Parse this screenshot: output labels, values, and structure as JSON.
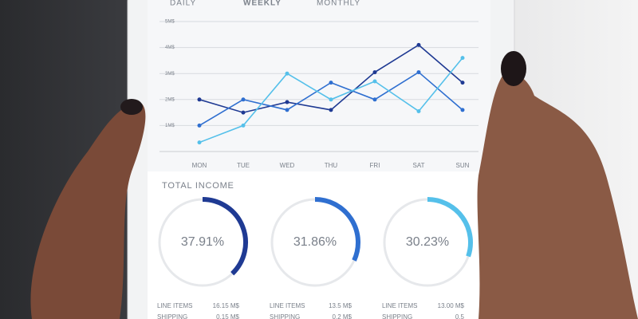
{
  "chart_data": [
    {
      "type": "line",
      "tabs": [
        "DAILY",
        "WEEKLY",
        "MONTHLY"
      ],
      "active_tab": 1,
      "categories": [
        "MON",
        "TUE",
        "WED",
        "THU",
        "FRI",
        "SAT",
        "SUN"
      ],
      "series": [
        {
          "color": "#1f3a93",
          "values": [
            2,
            1.5,
            1.9,
            1.6,
            3.05,
            4.1,
            2.65
          ]
        },
        {
          "color": "#2f6fd0",
          "values": [
            1,
            2,
            1.6,
            2.65,
            2,
            3.05,
            1.6
          ]
        },
        {
          "color": "#55c0ea",
          "values": [
            0.35,
            1,
            3,
            2,
            2.7,
            1.55,
            3.6
          ]
        }
      ],
      "ylim": [
        0,
        5
      ],
      "yticks": [
        {
          "value": 1,
          "label": "1M$"
        },
        {
          "value": 2,
          "label": "2M$"
        },
        {
          "value": 3,
          "label": "3M$"
        },
        {
          "value": 4,
          "label": "4M$"
        },
        {
          "value": 5,
          "label": "5M$"
        }
      ],
      "grid": true
    },
    {
      "type": "donut",
      "title": "TOTAL INCOME",
      "values": [
        37.91,
        31.86,
        30.23
      ],
      "value_labels": [
        "37.91%",
        "31.86%",
        "30.23%"
      ],
      "colors": [
        "#1f3a93",
        "#2f6fd0",
        "#55c0ea"
      ],
      "details": [
        [
          {
            "label": "LINE ITEMS",
            "value": "16.15 M$"
          },
          {
            "label": "SHIPPING",
            "value": "0.15 M$"
          }
        ],
        [
          {
            "label": "LINE ITEMS",
            "value": "13.5 M$"
          },
          {
            "label": "SHIPPING",
            "value": "0.2 M$"
          }
        ],
        [
          {
            "label": "LINE ITEMS",
            "value": "13.00 M$"
          },
          {
            "label": "SHIPPING",
            "value": "0.5"
          }
        ]
      ]
    }
  ]
}
